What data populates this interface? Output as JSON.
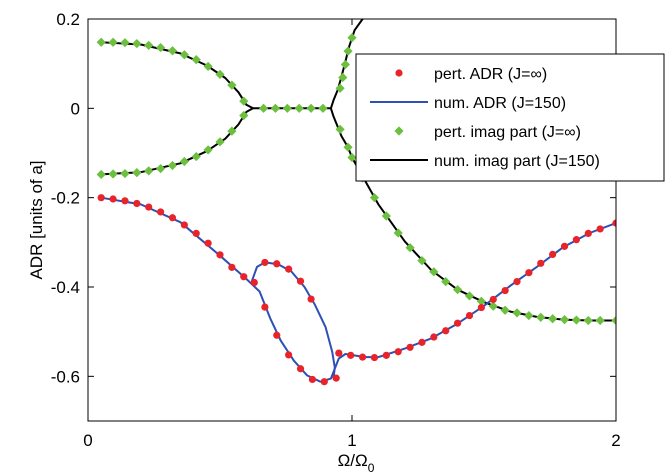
{
  "chart_data": {
    "type": "line",
    "xlabel": "Ω/Ω",
    "xlabel_subscript": "0",
    "ylabel": "ADR [units of a]",
    "xlim": [
      0,
      2
    ],
    "ylim": [
      -0.7,
      0.2
    ],
    "xticks": [
      0,
      1,
      2
    ],
    "xtick_labels": [
      "0",
      "1",
      "2"
    ],
    "yticks": [
      -0.6,
      -0.4,
      -0.2,
      0,
      0.2
    ],
    "ytick_labels": [
      "-0.6",
      "-0.4",
      "-0.2",
      "0",
      "0.2"
    ],
    "grid": false,
    "legend_position": "top-right",
    "series": [
      {
        "name": "pert. ADR (J=∞)",
        "style": "markers",
        "marker": "dot",
        "color": "#e8232a",
        "points": [
          [
            0.05,
            -0.2
          ],
          [
            0.095,
            -0.203
          ],
          [
            0.14,
            -0.207
          ],
          [
            0.185,
            -0.213
          ],
          [
            0.23,
            -0.221
          ],
          [
            0.275,
            -0.232
          ],
          [
            0.32,
            -0.245
          ],
          [
            0.365,
            -0.261
          ],
          [
            0.41,
            -0.28
          ],
          [
            0.455,
            -0.302
          ],
          [
            0.5,
            -0.328
          ],
          [
            0.545,
            -0.356
          ],
          [
            0.59,
            -0.377
          ],
          [
            0.63,
            -0.39
          ],
          [
            0.67,
            -0.345
          ],
          [
            0.715,
            -0.348
          ],
          [
            0.76,
            -0.36
          ],
          [
            0.805,
            -0.387
          ],
          [
            0.845,
            -0.427
          ],
          [
            0.67,
            -0.445
          ],
          [
            0.715,
            -0.508
          ],
          [
            0.76,
            -0.552
          ],
          [
            0.805,
            -0.583
          ],
          [
            0.85,
            -0.607
          ],
          [
            0.895,
            -0.612
          ],
          [
            0.94,
            -0.604
          ],
          [
            0.95,
            -0.548
          ],
          [
            0.995,
            -0.553
          ],
          [
            1.04,
            -0.557
          ],
          [
            1.085,
            -0.558
          ],
          [
            1.13,
            -0.553
          ],
          [
            1.175,
            -0.545
          ],
          [
            1.22,
            -0.535
          ],
          [
            1.265,
            -0.524
          ],
          [
            1.31,
            -0.512
          ],
          [
            1.355,
            -0.498
          ],
          [
            1.4,
            -0.481
          ],
          [
            1.445,
            -0.464
          ],
          [
            1.49,
            -0.446
          ],
          [
            1.535,
            -0.428
          ],
          [
            1.58,
            -0.408
          ],
          [
            1.625,
            -0.388
          ],
          [
            1.67,
            -0.368
          ],
          [
            1.715,
            -0.347
          ],
          [
            1.76,
            -0.327
          ],
          [
            1.805,
            -0.309
          ],
          [
            1.85,
            -0.294
          ],
          [
            1.895,
            -0.28
          ],
          [
            1.94,
            -0.27
          ],
          [
            2.0,
            -0.257
          ]
        ]
      },
      {
        "name": "num. ADR (J=150)",
        "style": "line",
        "color": "#2e4fb5",
        "segments": [
          [
            [
              0.05,
              -0.2
            ],
            [
              0.2,
              -0.215
            ],
            [
              0.35,
              -0.255
            ],
            [
              0.5,
              -0.33
            ],
            [
              0.6,
              -0.382
            ],
            [
              0.65,
              -0.41
            ],
            [
              0.69,
              -0.47
            ],
            [
              0.73,
              -0.52
            ],
            [
              0.78,
              -0.565
            ],
            [
              0.83,
              -0.598
            ],
            [
              0.88,
              -0.612
            ],
            [
              0.92,
              -0.605
            ],
            [
              0.95,
              -0.56
            ],
            [
              0.975,
              -0.55
            ],
            [
              1.05,
              -0.557
            ],
            [
              1.1,
              -0.557
            ],
            [
              1.2,
              -0.538
            ],
            [
              1.3,
              -0.515
            ],
            [
              1.4,
              -0.482
            ],
            [
              1.5,
              -0.442
            ],
            [
              1.6,
              -0.397
            ],
            [
              1.7,
              -0.355
            ],
            [
              1.8,
              -0.311
            ],
            [
              1.9,
              -0.279
            ],
            [
              2.0,
              -0.257
            ]
          ],
          [
            [
              0.62,
              -0.388
            ],
            [
              0.64,
              -0.355
            ],
            [
              0.67,
              -0.345
            ],
            [
              0.72,
              -0.349
            ],
            [
              0.77,
              -0.365
            ],
            [
              0.82,
              -0.4
            ],
            [
              0.86,
              -0.44
            ],
            [
              0.9,
              -0.49
            ],
            [
              0.925,
              -0.545
            ],
            [
              0.935,
              -0.58
            ],
            [
              0.93,
              -0.605
            ]
          ]
        ]
      },
      {
        "name": "pert. imag part (J=∞)",
        "style": "markers",
        "marker": "diamond",
        "color": "#6cbf3f",
        "points": [
          [
            0.05,
            0.148
          ],
          [
            0.095,
            0.148
          ],
          [
            0.14,
            0.147
          ],
          [
            0.185,
            0.145
          ],
          [
            0.23,
            0.141
          ],
          [
            0.275,
            0.136
          ],
          [
            0.32,
            0.129
          ],
          [
            0.365,
            0.12
          ],
          [
            0.41,
            0.109
          ],
          [
            0.455,
            0.094
          ],
          [
            0.5,
            0.076
          ],
          [
            0.545,
            0.052
          ],
          [
            0.59,
            0.016
          ],
          [
            0.05,
            -0.148
          ],
          [
            0.095,
            -0.147
          ],
          [
            0.14,
            -0.146
          ],
          [
            0.185,
            -0.144
          ],
          [
            0.23,
            -0.14
          ],
          [
            0.275,
            -0.135
          ],
          [
            0.32,
            -0.128
          ],
          [
            0.365,
            -0.119
          ],
          [
            0.41,
            -0.108
          ],
          [
            0.455,
            -0.093
          ],
          [
            0.5,
            -0.075
          ],
          [
            0.545,
            -0.051
          ],
          [
            0.59,
            -0.016
          ],
          [
            0.665,
            0
          ],
          [
            0.71,
            0
          ],
          [
            0.755,
            0
          ],
          [
            0.8,
            0
          ],
          [
            0.845,
            0
          ],
          [
            0.89,
            0
          ],
          [
            1.0,
            0.158
          ],
          [
            0.985,
            0.128
          ],
          [
            0.975,
            0.098
          ],
          [
            0.965,
            0.069
          ],
          [
            0.955,
            0.045
          ],
          [
            0.955,
            -0.047
          ],
          [
            0.985,
            -0.087
          ],
          [
            1.0,
            -0.11
          ],
          [
            1.04,
            -0.156
          ],
          [
            1.085,
            -0.2
          ],
          [
            1.13,
            -0.241
          ],
          [
            1.175,
            -0.279
          ],
          [
            1.22,
            -0.312
          ],
          [
            1.265,
            -0.341
          ],
          [
            1.31,
            -0.366
          ],
          [
            1.355,
            -0.388
          ],
          [
            1.4,
            -0.406
          ],
          [
            1.445,
            -0.42
          ],
          [
            1.49,
            -0.432
          ],
          [
            1.535,
            -0.443
          ],
          [
            1.58,
            -0.452
          ],
          [
            1.625,
            -0.458
          ],
          [
            1.67,
            -0.464
          ],
          [
            1.715,
            -0.468
          ],
          [
            1.76,
            -0.471
          ],
          [
            1.805,
            -0.473
          ],
          [
            1.85,
            -0.474
          ],
          [
            1.895,
            -0.475
          ],
          [
            1.94,
            -0.475
          ],
          [
            2.0,
            -0.475
          ]
        ]
      },
      {
        "name": "num. imag part (J=150)",
        "style": "line",
        "color": "#000000",
        "segments": [
          [
            [
              0.05,
              0.148
            ],
            [
              0.2,
              0.143
            ],
            [
              0.35,
              0.123
            ],
            [
              0.45,
              0.096
            ],
            [
              0.52,
              0.068
            ],
            [
              0.57,
              0.036
            ],
            [
              0.6,
              0.008
            ],
            [
              0.625,
              0
            ]
          ],
          [
            [
              0.05,
              -0.148
            ],
            [
              0.2,
              -0.143
            ],
            [
              0.35,
              -0.123
            ],
            [
              0.45,
              -0.096
            ],
            [
              0.52,
              -0.068
            ],
            [
              0.57,
              -0.036
            ],
            [
              0.6,
              -0.008
            ],
            [
              0.625,
              0
            ]
          ],
          [
            [
              0.625,
              0
            ],
            [
              0.92,
              0
            ]
          ],
          [
            [
              0.92,
              0
            ],
            [
              0.93,
              0.018
            ],
            [
              0.945,
              0.04
            ],
            [
              0.96,
              0.07
            ],
            [
              0.975,
              0.105
            ],
            [
              0.99,
              0.14
            ],
            [
              1.01,
              0.175
            ],
            [
              1.04,
              0.2
            ],
            [
              1.06,
              0.21
            ]
          ],
          [
            [
              0.92,
              0
            ],
            [
              0.93,
              -0.018
            ],
            [
              0.945,
              -0.04
            ],
            [
              0.96,
              -0.062
            ],
            [
              0.985,
              -0.087
            ],
            [
              1.0,
              -0.11
            ],
            [
              1.1,
              -0.215
            ],
            [
              1.2,
              -0.298
            ],
            [
              1.3,
              -0.362
            ],
            [
              1.4,
              -0.406
            ],
            [
              1.5,
              -0.434
            ],
            [
              1.6,
              -0.455
            ],
            [
              1.7,
              -0.467
            ],
            [
              1.8,
              -0.473
            ],
            [
              1.9,
              -0.475
            ],
            [
              2.0,
              -0.475
            ]
          ]
        ]
      }
    ]
  }
}
